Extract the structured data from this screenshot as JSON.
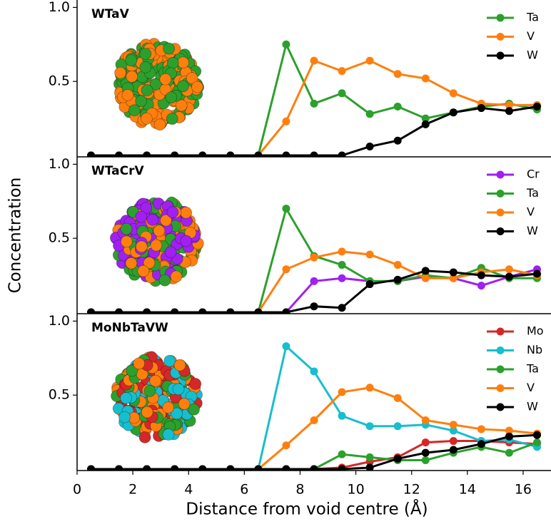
{
  "chart_data": [
    {
      "type": "line",
      "title": "WTaV",
      "x": [
        0.5,
        1.5,
        2.5,
        3.5,
        4.5,
        5.5,
        6.5,
        7.5,
        8.5,
        9.5,
        10.5,
        11.5,
        12.5,
        13.5,
        14.5,
        15.5,
        16.5
      ],
      "series": [
        {
          "name": "Ta",
          "color": "#2ca02c",
          "values": [
            0,
            0,
            0,
            0,
            0,
            0,
            0,
            0.75,
            0.35,
            0.42,
            0.28,
            0.33,
            0.25,
            0.29,
            0.33,
            0.35,
            0.31
          ]
        },
        {
          "name": "V",
          "color": "#ff7f0e",
          "values": [
            0,
            0,
            0,
            0,
            0,
            0,
            0,
            0.23,
            0.64,
            0.57,
            0.64,
            0.55,
            0.52,
            0.42,
            0.35,
            0.34,
            0.34
          ]
        },
        {
          "name": "W",
          "color": "#000000",
          "values": [
            0,
            0,
            0,
            0,
            0,
            0,
            0,
            0,
            0,
            0,
            0.06,
            0.1,
            0.21,
            0.29,
            0.32,
            0.3,
            0.33
          ]
        }
      ],
      "xlim": [
        0,
        17
      ],
      "ylim": [
        0,
        1.05
      ],
      "yticks": [
        0.5,
        {
          "value": 1,
          "label": "1.0"
        }
      ],
      "legend": "upper right"
    },
    {
      "type": "line",
      "title": "WTaCrV",
      "ylabel": "Concentration",
      "x": [
        0.5,
        1.5,
        2.5,
        3.5,
        4.5,
        5.5,
        6.5,
        7.5,
        8.5,
        9.5,
        10.5,
        11.5,
        12.5,
        13.5,
        14.5,
        15.5,
        16.5
      ],
      "series": [
        {
          "name": "Cr",
          "color": "#a020f0",
          "values": [
            0,
            0,
            0,
            0,
            0,
            0,
            0,
            0,
            0.21,
            0.23,
            0.21,
            0.21,
            0.24,
            0.23,
            0.18,
            0.24,
            0.29
          ]
        },
        {
          "name": "Ta",
          "color": "#2ca02c",
          "values": [
            0,
            0,
            0,
            0,
            0,
            0,
            0,
            0.7,
            0.38,
            0.32,
            0.21,
            0.21,
            0.25,
            0.23,
            0.3,
            0.23,
            0.23
          ]
        },
        {
          "name": "V",
          "color": "#ff7f0e",
          "values": [
            0,
            0,
            0,
            0,
            0,
            0,
            0,
            0.29,
            0.37,
            0.41,
            0.39,
            0.32,
            0.23,
            0.23,
            0.27,
            0.29,
            0.25
          ]
        },
        {
          "name": "W",
          "color": "#000000",
          "values": [
            0,
            0,
            0,
            0,
            0,
            0,
            0,
            0,
            0.04,
            0.03,
            0.19,
            0.22,
            0.28,
            0.27,
            0.25,
            0.24,
            0.26
          ]
        }
      ],
      "xlim": [
        0,
        17
      ],
      "ylim": [
        0,
        1.05
      ],
      "yticks": [
        0.5,
        {
          "value": 1,
          "label": "1.0"
        }
      ],
      "legend": "upper right"
    },
    {
      "type": "line",
      "title": "MoNbTaVW",
      "xlabel": "Distance from void centre (Å)",
      "x": [
        0.5,
        1.5,
        2.5,
        3.5,
        4.5,
        5.5,
        6.5,
        7.5,
        8.5,
        9.5,
        10.5,
        11.5,
        12.5,
        13.5,
        14.5,
        15.5,
        16.5
      ],
      "series": [
        {
          "name": "Mo",
          "color": "#d62728",
          "values": [
            0,
            0,
            0,
            0,
            0,
            0,
            0,
            0,
            0,
            0.01,
            0.05,
            0.08,
            0.18,
            0.19,
            0.19,
            0.18,
            0.17
          ]
        },
        {
          "name": "Nb",
          "color": "#17becf",
          "values": [
            0,
            0,
            0,
            0,
            0,
            0,
            0,
            0.83,
            0.66,
            0.36,
            0.29,
            0.29,
            0.3,
            0.26,
            0.19,
            0.2,
            0.15
          ]
        },
        {
          "name": "Ta",
          "color": "#2ca02c",
          "values": [
            0,
            0,
            0,
            0,
            0,
            0,
            0,
            0,
            0,
            0.1,
            0.08,
            0.06,
            0.06,
            0.11,
            0.15,
            0.11,
            0.18
          ]
        },
        {
          "name": "V",
          "color": "#ff7f0e",
          "values": [
            0,
            0,
            0,
            0,
            0,
            0,
            0,
            0.16,
            0.33,
            0.52,
            0.55,
            0.48,
            0.33,
            0.3,
            0.27,
            0.26,
            0.24
          ]
        },
        {
          "name": "W",
          "color": "#000000",
          "values": [
            0,
            0,
            0,
            0,
            0,
            0,
            0,
            0,
            0,
            0,
            0.01,
            0.07,
            0.11,
            0.13,
            0.17,
            0.22,
            0.23
          ]
        }
      ],
      "xlim": [
        0,
        17
      ],
      "ylim": [
        0,
        1.05
      ],
      "yticks": [
        0.5,
        {
          "value": 1,
          "label": "1.0"
        }
      ],
      "xticks": [
        0,
        2,
        4,
        6,
        8,
        10,
        12,
        14,
        16
      ],
      "legend": "upper right"
    }
  ]
}
